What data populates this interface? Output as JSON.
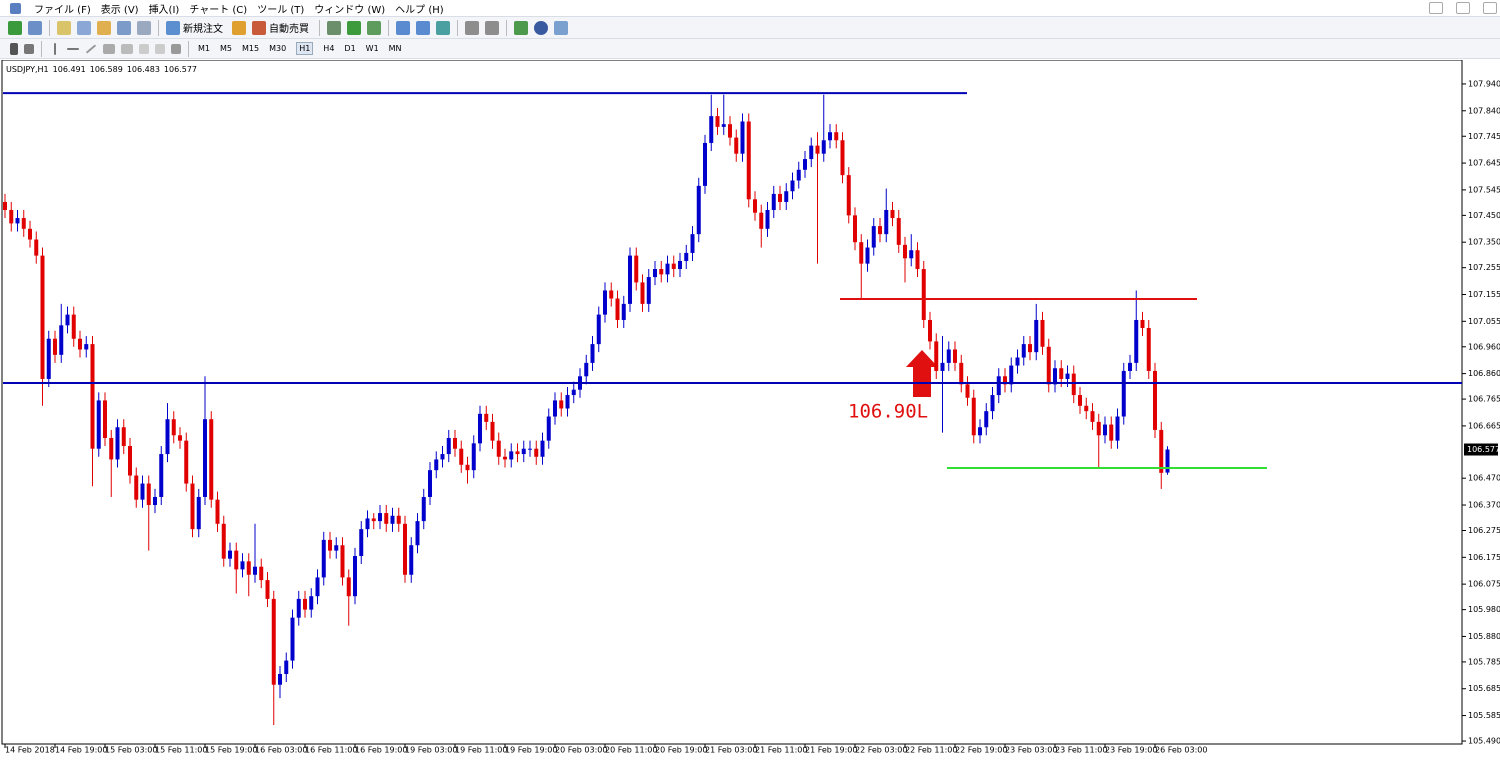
{
  "menu": [
    "ファイル (F)",
    "表示 (V)",
    "挿入(I)",
    "チャート (C)",
    "ツール (T)",
    "ウィンドウ (W)",
    "ヘルプ (H)"
  ],
  "toolbar": {
    "new_order": "新規注文",
    "auto_trading": "自動売買",
    "timeframes": [
      "M1",
      "M5",
      "M15",
      "M30",
      "H1",
      "H4",
      "D1",
      "W1",
      "MN"
    ]
  },
  "chart_data": {
    "type": "candlestick",
    "symbol": "USDJPY,H1",
    "up_color": "#0000cc",
    "down_color": "#e00000",
    "grid": false,
    "categories": [
      "14 Feb 2018",
      null,
      null,
      null,
      null,
      null,
      null,
      null,
      "14 Feb 19:00",
      null,
      null,
      null,
      null,
      null,
      null,
      null,
      "15 Feb 03:00",
      null,
      null,
      null,
      null,
      null,
      null,
      null,
      "15 Feb 11:00",
      null,
      null,
      null,
      null,
      null,
      null,
      null,
      "15 Feb 19:00",
      null,
      null,
      null,
      null,
      null,
      null,
      null,
      "16 Feb 03:00",
      null,
      null,
      null,
      null,
      null,
      null,
      null,
      "16 Feb 11:00",
      null,
      null,
      null,
      null,
      null,
      null,
      null,
      "16 Feb 19:00",
      null,
      null,
      null,
      null,
      null,
      null,
      null,
      "19 Feb 03:00",
      null,
      null,
      null,
      null,
      null,
      null,
      null,
      "19 Feb 11:00",
      null,
      null,
      null,
      null,
      null,
      null,
      null,
      "19 Feb 19:00",
      null,
      null,
      null,
      null,
      null,
      null,
      null,
      "20 Feb 03:00",
      null,
      null,
      null,
      null,
      null,
      null,
      null,
      "20 Feb 11:00",
      null,
      null,
      null,
      null,
      null,
      null,
      null,
      "20 Feb 19:00",
      null,
      null,
      null,
      null,
      null,
      null,
      null,
      "21 Feb 03:00",
      null,
      null,
      null,
      null,
      null,
      null,
      null,
      "21 Feb 11:00",
      null,
      null,
      null,
      null,
      null,
      null,
      null,
      "21 Feb 19:00",
      null,
      null,
      null,
      null,
      null,
      null,
      null,
      "22 Feb 03:00",
      null,
      null,
      null,
      null,
      null,
      null,
      null,
      "22 Feb 11:00",
      null,
      null,
      null,
      null,
      null,
      null,
      null,
      "22 Feb 19:00",
      null,
      null,
      null,
      null,
      null,
      null,
      null,
      "23 Feb 03:00",
      null,
      null,
      null,
      null,
      null,
      null,
      null,
      "23 Feb 11:00",
      null,
      null,
      null,
      null,
      null,
      null,
      null,
      "23 Feb 19:00",
      null,
      null,
      null,
      null,
      null,
      null,
      null,
      "26 Feb 03:00",
      null,
      null
    ],
    "open": [
      107.5,
      107.47,
      107.42,
      107.44,
      107.4,
      107.36,
      107.3,
      106.84,
      106.99,
      106.93,
      107.04,
      107.08,
      106.99,
      106.95,
      106.97,
      106.58,
      106.76,
      106.62,
      106.54,
      106.66,
      106.59,
      106.48,
      106.39,
      106.45,
      106.37,
      106.4,
      106.56,
      106.69,
      106.63,
      106.61,
      106.45,
      106.28,
      106.4,
      106.69,
      106.39,
      106.3,
      106.17,
      106.2,
      106.13,
      106.16,
      106.11,
      106.14,
      106.09,
      106.02,
      105.7,
      105.74,
      105.79,
      105.95,
      106.02,
      105.98,
      106.03,
      106.1,
      106.24,
      106.2,
      106.22,
      106.1,
      106.03,
      106.18,
      106.28,
      106.32,
      106.31,
      106.34,
      106.3,
      106.33,
      106.3,
      106.11,
      106.22,
      106.31,
      106.4,
      106.5,
      106.54,
      106.56,
      106.62,
      106.58,
      106.52,
      106.5,
      106.6,
      106.71,
      106.68,
      106.61,
      106.55,
      106.54,
      106.57,
      106.56,
      106.58,
      106.58,
      106.55,
      106.61,
      106.7,
      106.76,
      106.73,
      106.78,
      106.8,
      106.85,
      106.9,
      106.97,
      107.08,
      107.17,
      107.14,
      107.06,
      107.12,
      107.3,
      107.2,
      107.12,
      107.22,
      107.25,
      107.23,
      107.27,
      107.25,
      107.28,
      107.31,
      107.38,
      107.56,
      107.72,
      107.82,
      107.78,
      107.79,
      107.74,
      107.68,
      107.8,
      107.51,
      107.46,
      107.4,
      107.47,
      107.53,
      107.5,
      107.54,
      107.58,
      107.62,
      107.66,
      107.71,
      107.68,
      107.73,
      107.76,
      107.73,
      107.6,
      107.45,
      107.35,
      107.27,
      107.33,
      107.41,
      107.38,
      107.47,
      107.44,
      107.34,
      107.29,
      107.32,
      107.25,
      107.06,
      106.98,
      106.87,
      106.9,
      106.95,
      106.9,
      106.82,
      106.77,
      106.63,
      106.66,
      106.72,
      106.78,
      106.85,
      106.82,
      106.89,
      106.92,
      106.97,
      106.94,
      107.06,
      106.96,
      106.82,
      106.88,
      106.84,
      106.86,
      106.78,
      106.74,
      106.72,
      106.68,
      106.63,
      106.67,
      106.61,
      106.7,
      106.87,
      106.9,
      107.06,
      107.03,
      106.87,
      106.65,
      106.491
    ],
    "high": [
      107.53,
      107.5,
      107.47,
      107.47,
      107.43,
      107.39,
      107.33,
      107.02,
      107.02,
      107.12,
      107.11,
      107.11,
      107.02,
      107.0,
      107.0,
      106.79,
      106.79,
      106.65,
      106.69,
      106.69,
      106.62,
      106.51,
      106.48,
      106.48,
      106.43,
      106.59,
      106.75,
      106.72,
      106.66,
      106.64,
      106.48,
      106.43,
      106.85,
      106.72,
      106.42,
      106.33,
      106.23,
      106.23,
      106.19,
      106.19,
      106.3,
      106.17,
      106.12,
      106.05,
      105.77,
      105.82,
      105.98,
      106.05,
      106.05,
      106.06,
      106.13,
      106.27,
      106.27,
      106.25,
      106.25,
      106.13,
      106.21,
      106.31,
      106.35,
      106.34,
      106.37,
      106.37,
      106.36,
      106.36,
      106.33,
      106.25,
      106.34,
      106.43,
      106.53,
      106.57,
      106.59,
      106.65,
      106.65,
      106.61,
      106.55,
      106.63,
      106.74,
      106.74,
      106.71,
      106.64,
      106.58,
      106.6,
      106.6,
      106.61,
      106.61,
      106.61,
      106.64,
      106.73,
      106.79,
      106.79,
      106.81,
      106.83,
      106.88,
      106.93,
      107.0,
      107.11,
      107.2,
      107.2,
      107.17,
      107.15,
      107.33,
      107.33,
      107.23,
      107.25,
      107.28,
      107.28,
      107.3,
      107.3,
      107.31,
      107.34,
      107.41,
      107.59,
      107.75,
      107.9,
      107.85,
      107.9,
      107.82,
      107.77,
      107.83,
      107.83,
      107.54,
      107.49,
      107.5,
      107.56,
      107.56,
      107.57,
      107.61,
      107.65,
      107.69,
      107.74,
      107.76,
      107.9,
      107.79,
      107.79,
      107.76,
      107.63,
      107.48,
      107.38,
      107.36,
      107.44,
      107.44,
      107.55,
      107.5,
      107.47,
      107.37,
      107.38,
      107.35,
      107.28,
      107.09,
      107.01,
      107.0,
      106.98,
      106.98,
      106.93,
      106.85,
      106.8,
      106.69,
      106.75,
      106.81,
      106.88,
      106.88,
      106.92,
      106.95,
      107.0,
      107.0,
      107.12,
      107.09,
      106.99,
      106.91,
      106.91,
      106.89,
      106.89,
      106.81,
      106.77,
      106.75,
      106.71,
      106.7,
      106.7,
      106.73,
      106.9,
      106.93,
      107.17,
      107.09,
      107.06,
      106.9,
      106.68,
      106.589
    ],
    "low": [
      107.44,
      107.39,
      107.39,
      107.37,
      107.33,
      107.27,
      106.74,
      106.81,
      106.9,
      106.9,
      107.01,
      106.96,
      106.92,
      106.92,
      106.44,
      106.55,
      106.59,
      106.4,
      106.51,
      106.56,
      106.45,
      106.36,
      106.36,
      106.2,
      106.34,
      106.37,
      106.53,
      106.6,
      106.58,
      106.42,
      106.25,
      106.25,
      106.37,
      106.36,
      106.27,
      106.14,
      106.14,
      106.04,
      106.1,
      106.03,
      106.08,
      106.06,
      105.99,
      105.55,
      105.65,
      105.71,
      105.76,
      105.92,
      105.95,
      105.95,
      106.0,
      106.07,
      106.17,
      106.17,
      106.07,
      105.92,
      106.0,
      106.15,
      106.25,
      106.28,
      106.28,
      106.27,
      106.27,
      106.27,
      106.08,
      106.08,
      106.19,
      106.28,
      106.37,
      106.47,
      106.51,
      106.53,
      106.55,
      106.49,
      106.45,
      106.47,
      106.57,
      106.65,
      106.58,
      106.52,
      106.51,
      106.51,
      106.53,
      106.53,
      106.55,
      106.52,
      106.52,
      106.58,
      106.67,
      106.7,
      106.7,
      106.75,
      106.77,
      106.82,
      106.87,
      106.94,
      107.05,
      107.11,
      107.03,
      107.03,
      107.09,
      107.17,
      107.09,
      107.09,
      107.19,
      107.2,
      107.2,
      107.22,
      107.22,
      107.25,
      107.28,
      107.35,
      107.53,
      107.69,
      107.75,
      107.75,
      107.71,
      107.65,
      107.65,
      107.48,
      107.43,
      107.33,
      107.37,
      107.44,
      107.47,
      107.47,
      107.51,
      107.55,
      107.59,
      107.63,
      107.27,
      107.65,
      107.7,
      107.7,
      107.57,
      107.42,
      107.32,
      107.14,
      107.24,
      107.3,
      107.35,
      107.35,
      107.41,
      107.31,
      107.2,
      107.26,
      107.22,
      107.03,
      106.95,
      106.84,
      106.64,
      106.87,
      106.87,
      106.79,
      106.74,
      106.6,
      106.6,
      106.63,
      106.69,
      106.75,
      106.79,
      106.79,
      106.86,
      106.89,
      106.91,
      106.91,
      106.93,
      106.79,
      106.79,
      106.81,
      106.81,
      106.75,
      106.71,
      106.69,
      106.65,
      106.51,
      106.6,
      106.58,
      106.58,
      106.67,
      106.84,
      106.87,
      107.0,
      106.84,
      106.62,
      106.43,
      106.483
    ],
    "close": [
      107.47,
      107.42,
      107.44,
      107.4,
      107.36,
      107.3,
      106.84,
      106.99,
      106.93,
      107.04,
      107.08,
      106.99,
      106.95,
      106.97,
      106.58,
      106.76,
      106.62,
      106.54,
      106.66,
      106.59,
      106.48,
      106.39,
      106.45,
      106.37,
      106.4,
      106.56,
      106.69,
      106.63,
      106.61,
      106.45,
      106.28,
      106.4,
      106.69,
      106.39,
      106.3,
      106.17,
      106.2,
      106.13,
      106.16,
      106.11,
      106.14,
      106.09,
      106.02,
      105.7,
      105.74,
      105.79,
      105.95,
      106.02,
      105.98,
      106.03,
      106.1,
      106.24,
      106.2,
      106.22,
      106.1,
      106.03,
      106.18,
      106.28,
      106.32,
      106.31,
      106.34,
      106.3,
      106.33,
      106.3,
      106.11,
      106.22,
      106.31,
      106.4,
      106.5,
      106.54,
      106.56,
      106.62,
      106.58,
      106.52,
      106.5,
      106.6,
      106.71,
      106.68,
      106.61,
      106.55,
      106.54,
      106.57,
      106.56,
      106.58,
      106.58,
      106.55,
      106.61,
      106.7,
      106.76,
      106.73,
      106.78,
      106.8,
      106.85,
      106.9,
      106.97,
      107.08,
      107.17,
      107.14,
      107.06,
      107.12,
      107.3,
      107.2,
      107.12,
      107.22,
      107.25,
      107.23,
      107.27,
      107.25,
      107.28,
      107.31,
      107.38,
      107.56,
      107.72,
      107.82,
      107.78,
      107.79,
      107.74,
      107.68,
      107.8,
      107.51,
      107.46,
      107.4,
      107.47,
      107.53,
      107.5,
      107.54,
      107.58,
      107.62,
      107.66,
      107.71,
      107.68,
      107.73,
      107.76,
      107.73,
      107.6,
      107.45,
      107.35,
      107.27,
      107.33,
      107.41,
      107.38,
      107.47,
      107.44,
      107.34,
      107.29,
      107.32,
      107.25,
      107.06,
      106.98,
      106.87,
      106.9,
      106.95,
      106.9,
      106.82,
      106.77,
      106.63,
      106.66,
      106.72,
      106.78,
      106.85,
      106.82,
      106.89,
      106.92,
      106.97,
      106.94,
      107.06,
      106.96,
      106.82,
      106.88,
      106.84,
      106.86,
      106.78,
      106.74,
      106.72,
      106.68,
      106.63,
      106.67,
      106.61,
      106.7,
      106.87,
      106.9,
      107.06,
      107.03,
      106.87,
      106.65,
      106.49,
      106.577
    ],
    "ylim": [
      105.47,
      108.02
    ],
    "yticks": [
      {
        "value": 107.94,
        "label": "107.940"
      },
      {
        "value": 107.84,
        "label": "107.840"
      },
      107.745,
      107.645,
      107.545,
      {
        "value": 107.45,
        "label": "107.450"
      },
      {
        "value": 107.35,
        "label": "107.350"
      },
      107.255,
      107.155,
      107.055,
      {
        "value": 106.96,
        "label": "106.960"
      },
      {
        "value": 106.86,
        "label": "106.860"
      },
      106.765,
      106.665,
      {
        "value": 106.47,
        "label": "106.470"
      },
      {
        "value": 106.37,
        "label": "106.370"
      },
      106.275,
      106.175,
      106.075,
      {
        "value": 105.98,
        "label": "105.980"
      },
      {
        "value": 105.88,
        "label": "105.880"
      },
      105.785,
      105.685,
      105.585,
      {
        "value": 105.49,
        "label": "105.490"
      }
    ],
    "levels": [
      {
        "value": 107.906,
        "color": "#0000b4"
      },
      {
        "value": 106.825,
        "color": "#0000b4"
      },
      {
        "value": 107.138,
        "color": "#e01010"
      },
      {
        "value": 106.508,
        "color": "#33dd33"
      }
    ],
    "annotation": "106.90L"
  }
}
